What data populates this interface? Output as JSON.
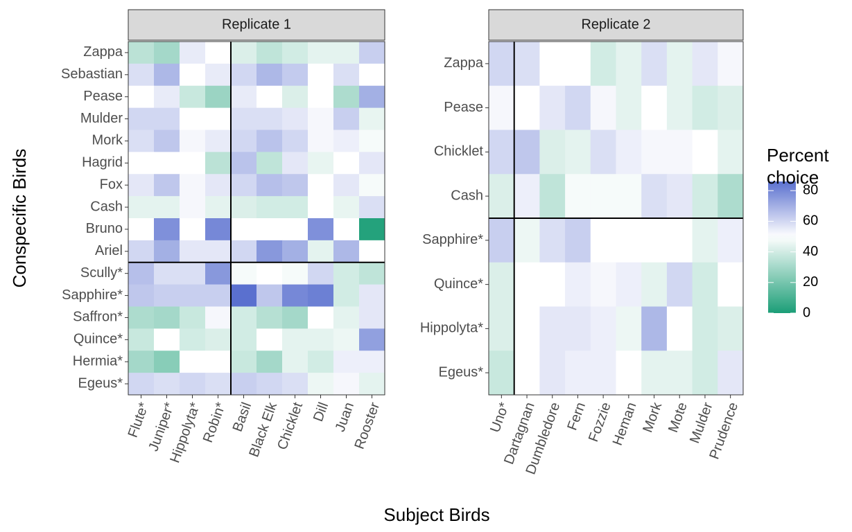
{
  "chart_data": {
    "type": "heatmap",
    "xlabel": "Subject Birds",
    "ylabel": "Conspecific Birds",
    "legend_title": "Percent choice",
    "clim": [
      0,
      86
    ],
    "cticks": [
      0,
      20,
      40,
      60,
      80
    ],
    "colorscale": {
      "low": "#1b9e77",
      "mid": "#ffffff",
      "high": "#5a70cf",
      "midpoint": 50
    },
    "panels": [
      {
        "title": "Replicate 1",
        "x": [
          "Flute*",
          "Juniper*",
          "Hippolyta*",
          "Robin*",
          "Basil",
          "Black Elk",
          "Chicklet",
          "Dill",
          "Juan",
          "Rooster"
        ],
        "y": [
          "Zappa",
          "Sebastian",
          "Pease",
          "Mulder",
          "Mork",
          "Hagrid",
          "Fox",
          "Cash",
          "Bruno",
          "Ariel",
          "Scully*",
          "Sapphire*",
          "Saffron*",
          "Quince*",
          "Hermia*",
          "Egeus*"
        ],
        "values": [
          [
            35,
            30,
            55,
            50,
            42,
            36,
            40,
            44,
            44,
            62
          ],
          [
            58,
            68,
            50,
            55,
            60,
            68,
            63,
            50,
            58,
            50
          ],
          [
            50,
            55,
            38,
            28,
            55,
            50,
            42,
            50,
            32,
            70
          ],
          [
            60,
            60,
            50,
            50,
            58,
            58,
            56,
            52,
            62,
            45
          ],
          [
            58,
            64,
            52,
            55,
            60,
            65,
            60,
            52,
            54,
            48
          ],
          [
            50,
            50,
            50,
            35,
            65,
            36,
            56,
            45,
            50,
            56
          ],
          [
            56,
            64,
            52,
            56,
            60,
            66,
            64,
            50,
            56,
            48
          ],
          [
            44,
            44,
            52,
            44,
            42,
            40,
            40,
            50,
            45,
            58
          ],
          [
            50,
            78,
            50,
            80,
            50,
            50,
            50,
            78,
            50,
            2
          ],
          [
            60,
            70,
            56,
            56,
            60,
            76,
            70,
            44,
            68,
            50
          ],
          [
            66,
            58,
            58,
            76,
            48,
            50,
            48,
            60,
            40,
            36
          ],
          [
            64,
            62,
            62,
            62,
            86,
            64,
            80,
            82,
            40,
            56
          ],
          [
            32,
            30,
            38,
            52,
            40,
            34,
            30,
            50,
            44,
            56
          ],
          [
            38,
            50,
            40,
            42,
            40,
            50,
            44,
            44,
            46,
            74
          ],
          [
            30,
            24,
            50,
            50,
            38,
            30,
            44,
            40,
            54,
            54
          ],
          [
            60,
            58,
            60,
            58,
            62,
            60,
            58,
            46,
            52,
            44
          ]
        ]
      },
      {
        "title": "Replicate 2",
        "x": [
          "Uno*",
          "Dartagnan",
          "Dumbledore",
          "Fern",
          "Fozzie",
          "Heman",
          "Mork",
          "Mote",
          "Mulder",
          "Prudence"
        ],
        "y": [
          "Zappa",
          "Pease",
          "Chicklet",
          "Cash",
          "Sapphire*",
          "Quince*",
          "Hippolyta*",
          "Egeus*"
        ],
        "values": [
          [
            60,
            58,
            50,
            50,
            40,
            44,
            58,
            44,
            56,
            52
          ],
          [
            52,
            50,
            56,
            60,
            52,
            44,
            50,
            44,
            40,
            42
          ],
          [
            60,
            64,
            42,
            44,
            58,
            54,
            52,
            52,
            50,
            44
          ],
          [
            42,
            54,
            36,
            48,
            48,
            48,
            58,
            56,
            40,
            32
          ],
          [
            62,
            46,
            58,
            62,
            50,
            50,
            50,
            50,
            44,
            54
          ],
          [
            42,
            50,
            50,
            54,
            52,
            54,
            44,
            60,
            40,
            50
          ],
          [
            42,
            50,
            56,
            56,
            54,
            46,
            68,
            50,
            40,
            42
          ],
          [
            38,
            50,
            56,
            54,
            54,
            50,
            44,
            44,
            40,
            56
          ]
        ]
      }
    ]
  }
}
